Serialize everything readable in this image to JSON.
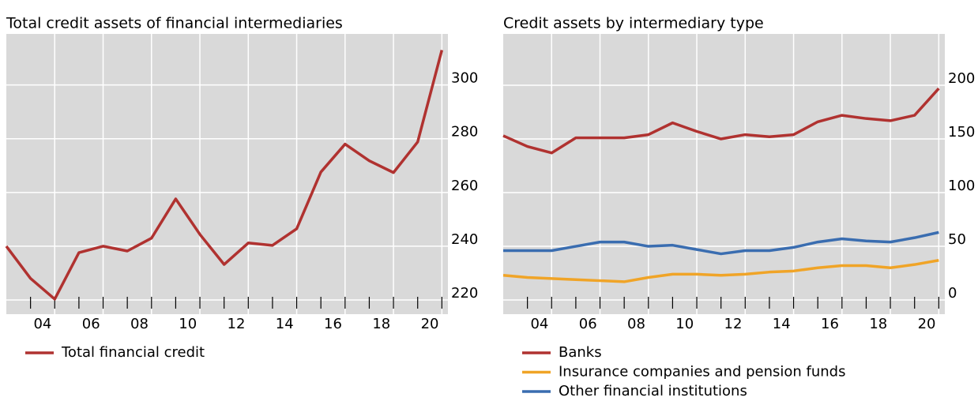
{
  "chart_data": [
    {
      "type": "line",
      "title": "Total credit assets of financial intermediaries",
      "x": [
        2003,
        2004,
        2005,
        2006,
        2007,
        2008,
        2009,
        2010,
        2011,
        2012,
        2013,
        2014,
        2015,
        2016,
        2017,
        2018,
        2019,
        2020,
        2021
      ],
      "series": [
        {
          "name": "Total financial credit",
          "color": "#b03230",
          "values": [
            240,
            228,
            220.3,
            237.6,
            240,
            238.2,
            243,
            257.6,
            244.4,
            233.2,
            241.2,
            240.3,
            246.5,
            267.6,
            278,
            271.8,
            267.4,
            278.8,
            313
          ]
        }
      ],
      "xlim": [
        2003,
        2021.25
      ],
      "xticks": [
        {
          "value": 2004,
          "label": "04"
        },
        {
          "value": 2006,
          "label": "06"
        },
        {
          "value": 2008,
          "label": "08"
        },
        {
          "value": 2010,
          "label": "10"
        },
        {
          "value": 2012,
          "label": "12"
        },
        {
          "value": 2014,
          "label": "14"
        },
        {
          "value": 2016,
          "label": "16"
        },
        {
          "value": 2018,
          "label": "18"
        },
        {
          "value": 2020,
          "label": "20"
        }
      ],
      "x_tick_marks": [
        2004,
        2005,
        2006,
        2007,
        2008,
        2009,
        2010,
        2011,
        2012,
        2013,
        2014,
        2015,
        2016,
        2017,
        2018,
        2019,
        2020,
        2021
      ],
      "x_grid": [
        2005,
        2007,
        2009,
        2011,
        2013,
        2015,
        2017,
        2019,
        2021
      ],
      "ylim": [
        214.7,
        319
      ],
      "yticks": [
        220,
        240,
        260,
        280,
        300
      ],
      "grid": true
    },
    {
      "type": "line",
      "title": "Credit assets by intermediary type",
      "x": [
        2003,
        2004,
        2005,
        2006,
        2007,
        2008,
        2009,
        2010,
        2011,
        2012,
        2013,
        2014,
        2015,
        2016,
        2017,
        2018,
        2019,
        2020,
        2021
      ],
      "series": [
        {
          "name": "Banks",
          "color": "#b03230",
          "values": [
            153,
            143,
            137,
            151,
            151,
            151,
            154,
            165,
            157,
            150,
            154,
            152,
            154,
            166,
            172,
            169,
            167,
            172,
            197
          ]
        },
        {
          "name": "Insurance companies and pension funds",
          "color": "#f0a427",
          "values": [
            23,
            21,
            20,
            19,
            18,
            17,
            21,
            24,
            24,
            23,
            24,
            26,
            27,
            30,
            32,
            32,
            30,
            33,
            37
          ]
        },
        {
          "name": "Other financial institutions",
          "color": "#3a6db0",
          "values": [
            46,
            46,
            46,
            50,
            54,
            54,
            50,
            51,
            47,
            43,
            46,
            46,
            49,
            54,
            57,
            55,
            54,
            58,
            63
          ]
        }
      ],
      "xlim": [
        2003,
        2021.25
      ],
      "xticks": [
        {
          "value": 2004,
          "label": "04"
        },
        {
          "value": 2006,
          "label": "06"
        },
        {
          "value": 2008,
          "label": "08"
        },
        {
          "value": 2010,
          "label": "10"
        },
        {
          "value": 2012,
          "label": "12"
        },
        {
          "value": 2014,
          "label": "14"
        },
        {
          "value": 2016,
          "label": "16"
        },
        {
          "value": 2018,
          "label": "18"
        },
        {
          "value": 2020,
          "label": "20"
        }
      ],
      "x_tick_marks": [
        2004,
        2005,
        2006,
        2007,
        2008,
        2009,
        2010,
        2011,
        2012,
        2013,
        2014,
        2015,
        2016,
        2017,
        2018,
        2019,
        2020,
        2021
      ],
      "x_grid": [
        2005,
        2007,
        2009,
        2011,
        2013,
        2015,
        2017,
        2019,
        2021
      ],
      "ylim": [
        -13.2,
        247.8
      ],
      "yticks": [
        0,
        50,
        100,
        150,
        200
      ],
      "grid": true
    }
  ]
}
